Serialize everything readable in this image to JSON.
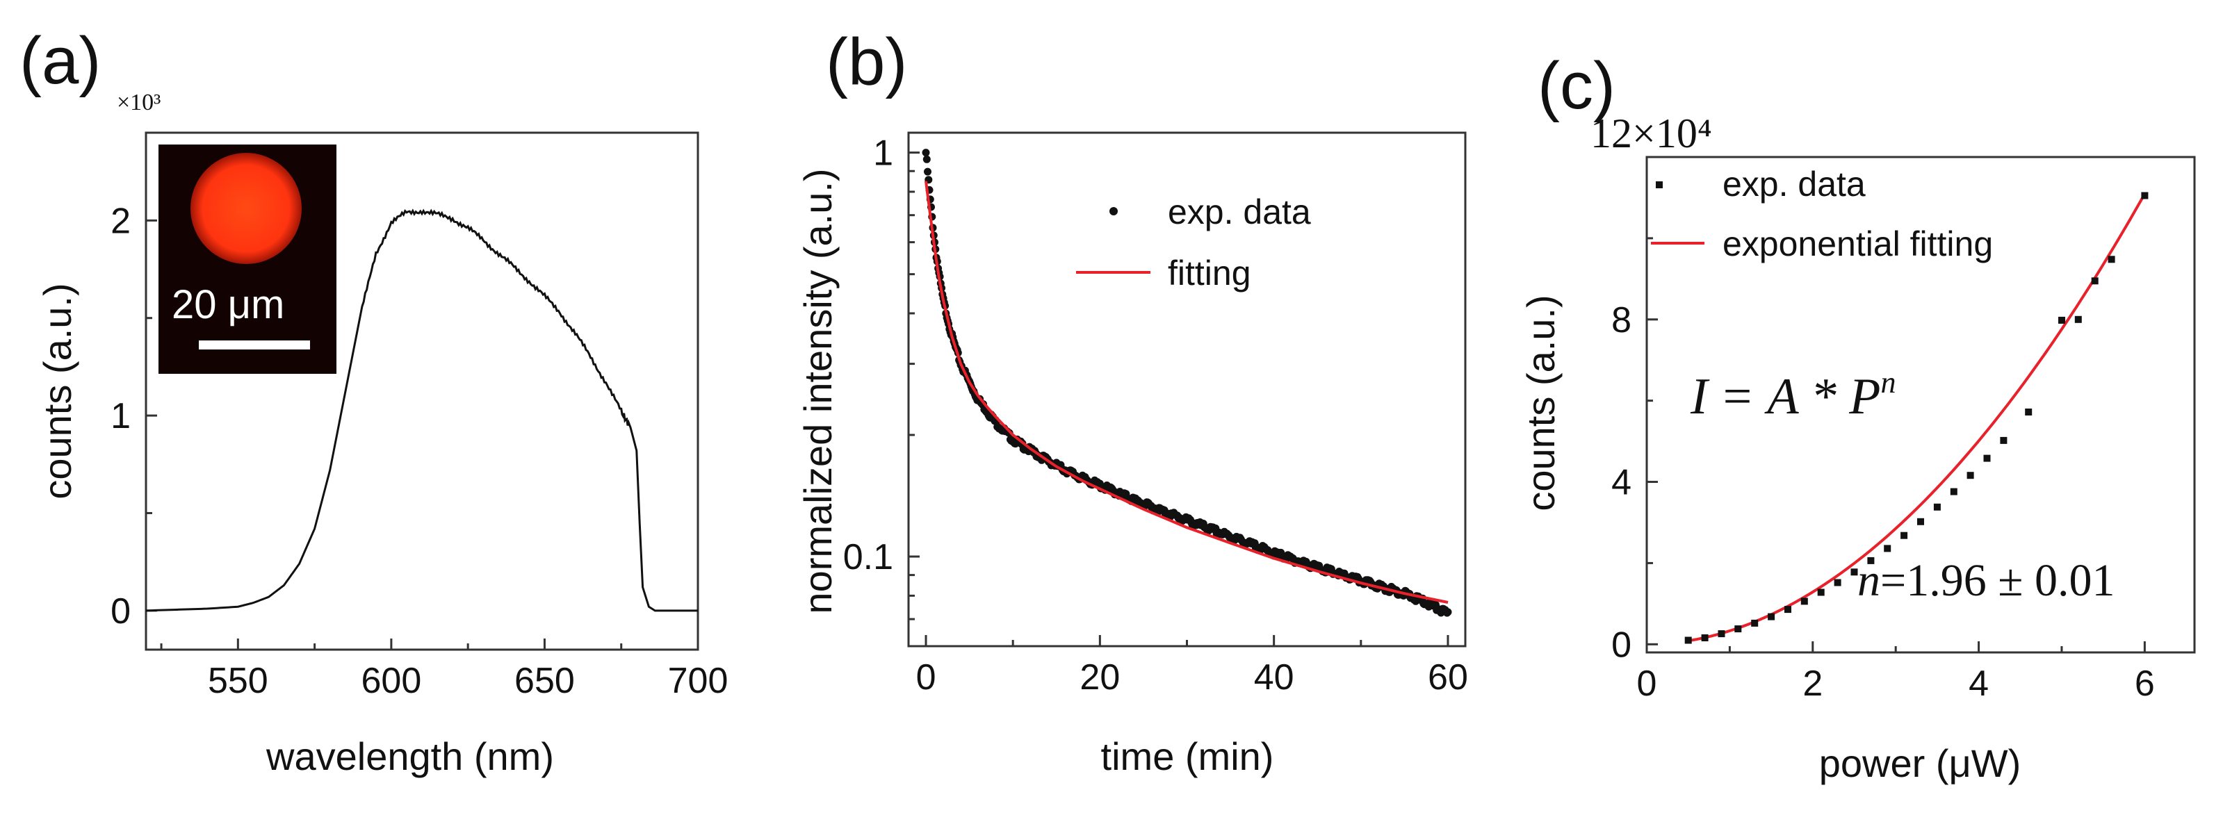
{
  "colors": {
    "fit": "#e8212a",
    "data": "#111111",
    "spectrum": "#111111",
    "inset_bg": "#120302",
    "inset_spot": "#ff3b12"
  },
  "chart_data": [
    {
      "panel": "(a)",
      "type": "line",
      "xlabel": "wavelength (nm)",
      "ylabel": "counts (a.u.)",
      "multiplier": "×10³",
      "xlim": [
        520,
        700
      ],
      "ylim": [
        -0.2,
        2.45
      ],
      "xticks": [
        550,
        600,
        650,
        700
      ],
      "yticks": [
        0,
        1,
        2
      ],
      "xtick_labels": [
        "550",
        "600",
        "650",
        "700"
      ],
      "ytick_labels": [
        "0",
        "1",
        "2"
      ],
      "inset": {
        "scale_bar_label": "20 μm"
      },
      "series": [
        {
          "name": "spectrum",
          "x": [
            520,
            530,
            540,
            550,
            555,
            560,
            565,
            570,
            575,
            580,
            585,
            590,
            595,
            600,
            605,
            610,
            615,
            620,
            625,
            630,
            635,
            640,
            645,
            650,
            655,
            660,
            665,
            670,
            675,
            678,
            680,
            681,
            682,
            684,
            686,
            690,
            700
          ],
          "y": [
            0.0,
            0.005,
            0.01,
            0.02,
            0.04,
            0.07,
            0.13,
            0.24,
            0.42,
            0.72,
            1.12,
            1.52,
            1.83,
            1.99,
            2.04,
            2.05,
            2.03,
            2.01,
            1.96,
            1.9,
            1.83,
            1.76,
            1.69,
            1.61,
            1.53,
            1.42,
            1.3,
            1.17,
            1.02,
            0.94,
            0.82,
            0.45,
            0.12,
            0.02,
            0.0,
            0.0,
            0.0
          ]
        }
      ]
    },
    {
      "panel": "(b)",
      "type": "scatter",
      "xlabel": "time (min)",
      "ylabel": "normalized intensity (a.u.)",
      "yscale": "log",
      "xlim": [
        -2,
        62
      ],
      "ylim": [
        0.06,
        1.12
      ],
      "xticks": [
        0,
        20,
        40,
        60
      ],
      "xtick_labels": [
        "0",
        "20",
        "40",
        "60"
      ],
      "yticks": [
        0.1,
        1
      ],
      "ytick_labels": [
        "0.1",
        "1"
      ],
      "legend": [
        "exp. data",
        "fitting"
      ],
      "series": [
        {
          "name": "exp. data",
          "x": [
            0,
            0.5,
            1,
            1.5,
            2,
            3,
            4,
            5,
            6,
            7,
            8,
            10,
            12,
            15,
            18,
            20,
            25,
            30,
            35,
            40,
            45,
            50,
            55,
            58,
            60
          ],
          "y": [
            1.0,
            0.76,
            0.6,
            0.5,
            0.43,
            0.35,
            0.3,
            0.27,
            0.245,
            0.23,
            0.215,
            0.195,
            0.183,
            0.168,
            0.156,
            0.15,
            0.135,
            0.123,
            0.112,
            0.102,
            0.094,
            0.087,
            0.081,
            0.076,
            0.072
          ]
        },
        {
          "name": "fitting",
          "x": [
            0,
            0.5,
            1,
            1.5,
            2,
            3,
            4,
            5,
            6,
            7,
            8,
            10,
            12,
            15,
            18,
            20,
            25,
            30,
            35,
            40,
            45,
            50,
            55,
            60
          ],
          "y": [
            0.85,
            0.7,
            0.58,
            0.49,
            0.43,
            0.35,
            0.3,
            0.27,
            0.25,
            0.235,
            0.222,
            0.2,
            0.185,
            0.167,
            0.154,
            0.147,
            0.131,
            0.118,
            0.108,
            0.099,
            0.092,
            0.086,
            0.081,
            0.077
          ]
        }
      ]
    },
    {
      "panel": "(c)",
      "type": "scatter",
      "xlabel": "power (μW)",
      "ylabel": "counts (a.u.)",
      "multiplier": "12×10⁴",
      "xlim": [
        0,
        6.6
      ],
      "ylim": [
        -0.2,
        12
      ],
      "xticks": [
        0,
        2,
        4,
        6
      ],
      "xtick_labels": [
        "0",
        "2",
        "4",
        "6"
      ],
      "yticks": [
        0,
        4,
        8
      ],
      "ytick_labels": [
        "0",
        "4",
        "8"
      ],
      "legend": [
        "exp. data",
        "exponential fitting"
      ],
      "equation": "I = A * P^n",
      "equation_parts": {
        "lhs": "I",
        "op": "=",
        "rhs": "A * P",
        "exp": "n"
      },
      "annotation": {
        "var": "n",
        "text": "=1.96 ± 0.01"
      },
      "series": [
        {
          "name": "exp. data",
          "x": [
            0.5,
            0.7,
            0.9,
            1.1,
            1.3,
            1.5,
            1.7,
            1.9,
            2.1,
            2.3,
            2.5,
            2.7,
            2.9,
            3.1,
            3.3,
            3.5,
            3.7,
            3.9,
            4.1,
            4.3,
            4.6,
            5.0,
            5.2,
            5.4,
            5.6,
            6.0
          ],
          "y": [
            0.1,
            0.16,
            0.26,
            0.38,
            0.52,
            0.68,
            0.86,
            1.06,
            1.28,
            1.52,
            1.78,
            2.06,
            2.36,
            2.68,
            3.02,
            3.38,
            3.76,
            4.16,
            4.58,
            5.02,
            5.72,
            7.98,
            8.0,
            8.95,
            9.48,
            11.05
          ]
        },
        {
          "name": "exponential fitting",
          "power_law": {
            "A": 0.331,
            "n": 1.96
          },
          "x_range": [
            0.5,
            6.0
          ]
        }
      ]
    }
  ]
}
